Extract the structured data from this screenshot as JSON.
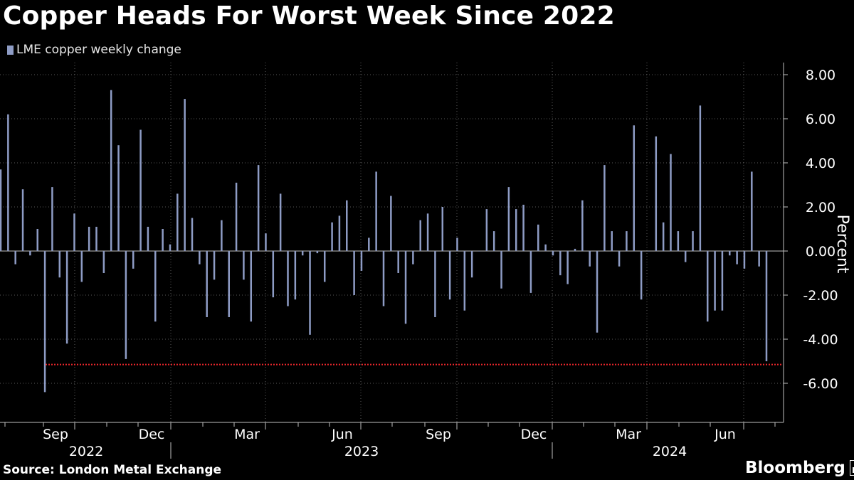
{
  "title": "Copper Heads For Worst Week Since 2022",
  "source": "Source: London Metal Exchange",
  "brand": "Bloomberg",
  "colors": {
    "background": "#000000",
    "bar": "#8e9cc5",
    "reference_line": "#e8262b",
    "grid": "#5a5a5a",
    "text": "#ffffff"
  },
  "chart_data": {
    "type": "bar",
    "legend": [
      "LME copper weekly change"
    ],
    "ylabel": "Percent",
    "ylim": [
      -7.0,
      8.5
    ],
    "yticks": [
      8.0,
      6.0,
      4.0,
      2.0,
      0.0,
      -2.0,
      -4.0,
      -6.0
    ],
    "ytick_labels": [
      "8.00",
      "6.00",
      "4.00",
      "2.00",
      "0.00",
      "-2.00",
      "-4.00",
      "-6.00"
    ],
    "reference_line": {
      "value": -5.15,
      "style": "dotted"
    },
    "month_labels": [
      "Sep",
      "Dec",
      "Mar",
      "Jun",
      "Sep",
      "Dec",
      "Mar",
      "Jun"
    ],
    "year_labels": [
      "2022",
      "2023",
      "2024"
    ],
    "series": [
      {
        "name": "LME copper weekly change",
        "start_week": "2022-08-05",
        "values": [
          3.7,
          6.2,
          -0.6,
          2.8,
          -0.2,
          1.0,
          -6.4,
          2.9,
          -1.2,
          -4.2,
          1.7,
          -1.4,
          1.1,
          1.1,
          -1.0,
          7.3,
          4.8,
          -4.9,
          -0.8,
          5.5,
          1.1,
          -3.2,
          1.0,
          0.3,
          2.6,
          6.9,
          1.5,
          -0.6,
          -3.0,
          -1.3,
          1.4,
          -3.0,
          3.1,
          -1.3,
          -3.2,
          3.9,
          0.8,
          -2.1,
          2.6,
          -2.5,
          -2.2,
          -0.2,
          -3.8,
          -0.1,
          -1.4,
          1.3,
          1.6,
          2.3,
          -2.0,
          -0.9,
          0.6,
          3.6,
          -2.5,
          2.5,
          -1.0,
          -3.3,
          -0.6,
          1.4,
          1.7,
          -3.0,
          2.0,
          -2.2,
          0.6,
          -2.7,
          -1.2,
          0.0,
          1.9,
          0.9,
          -1.7,
          2.9,
          1.9,
          2.1,
          -1.9,
          1.2,
          0.3,
          -0.2,
          -1.1,
          -1.5,
          0.1,
          2.3,
          -0.7,
          -3.7,
          3.9,
          0.9,
          -0.7,
          0.9,
          5.7,
          -2.2,
          0.0,
          5.2,
          1.3,
          4.4,
          0.9,
          -0.5,
          0.9,
          6.6,
          -3.2,
          -2.7,
          -2.7,
          -0.2,
          -0.6,
          -0.8,
          3.6,
          -0.7,
          -5.0
        ]
      }
    ]
  }
}
